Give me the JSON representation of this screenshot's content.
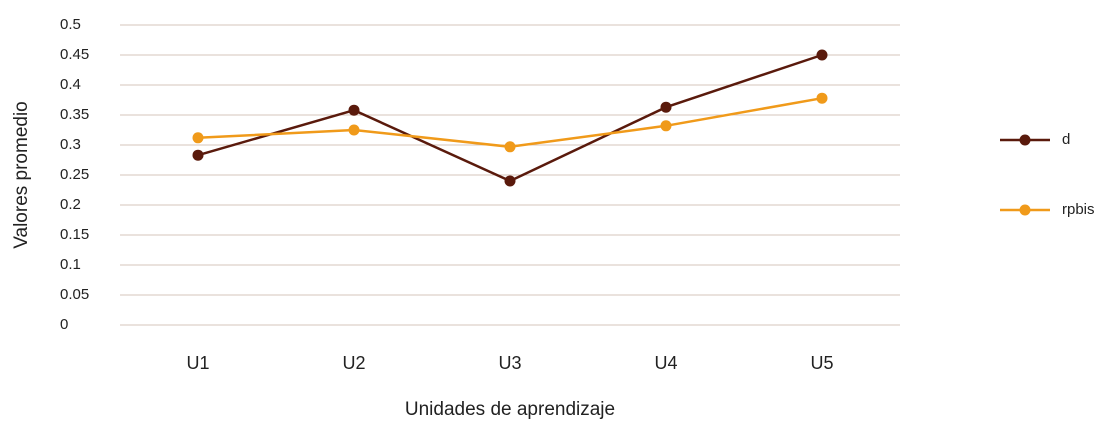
{
  "chart_data": {
    "type": "line",
    "y_label": "Valores promedio",
    "x_label": "Unidades de aprendizaje",
    "categories": [
      "U1",
      "U2",
      "U3",
      "U4",
      "U5"
    ],
    "series": [
      {
        "name": "d",
        "color": "#5a1a0c",
        "values": [
          0.283,
          0.358,
          0.24,
          0.363,
          0.45
        ]
      },
      {
        "name": "rpbis",
        "color": "#f09a1a",
        "values": [
          0.312,
          0.325,
          0.297,
          0.332,
          0.378
        ]
      }
    ],
    "ylim": [
      0,
      0.5
    ],
    "yticks": [
      0,
      0.05,
      0.1,
      0.15,
      0.2,
      0.25,
      0.3,
      0.35,
      0.4,
      0.45,
      0.5
    ],
    "grid": true,
    "legend": "right"
  }
}
